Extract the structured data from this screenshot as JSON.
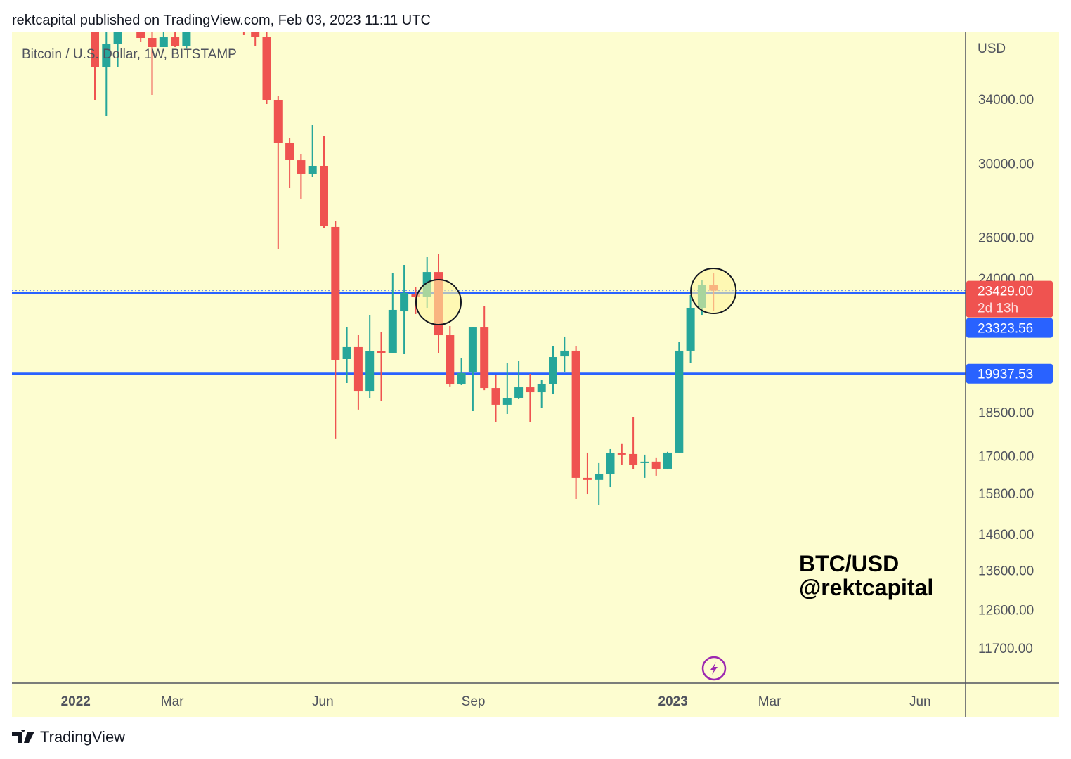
{
  "header": {
    "publish_line": "rektcapital published on TradingView.com, Feb 03, 2023 11:11 UTC"
  },
  "footer": {
    "brand": "TradingView"
  },
  "colors": {
    "background": "#fdfdd0",
    "up": "#26a69a",
    "down": "#ef5350",
    "level": "#2962ff",
    "axis": "#50535e",
    "text": "#50535e",
    "circle": "#131722",
    "flash": "#9c27b0"
  },
  "chart_data": {
    "type": "candlestick",
    "title": "Bitcoin / U.S. Dollar, 1W, BITSTAMP",
    "currency": "USD",
    "scale": "log",
    "start_date": "2022-01-17",
    "interval": "1W",
    "ylim": [
      10500,
      38700
    ],
    "candles_ohlc": [
      [
        41800,
        43000,
        33953,
        36204
      ],
      [
        36155,
        39000,
        32903,
        37873
      ],
      [
        37873,
        44000,
        36204,
        39000
      ],
      null,
      [
        39000,
        39500,
        37978,
        38291
      ],
      [
        38291,
        39000,
        34280,
        37617
      ],
      [
        37617,
        39000,
        37617,
        38342
      ],
      [
        38342,
        39000,
        37617,
        37668
      ],
      [
        37668,
        41000,
        37500,
        40000
      ],
      null,
      null,
      null,
      null,
      [
        40000,
        41000,
        38500,
        39500
      ],
      [
        39500,
        40000,
        37668,
        38395
      ],
      [
        38395,
        39000,
        33676,
        33953
      ],
      [
        33953,
        34186,
        25381,
        31239
      ],
      [
        31239,
        31500,
        28584,
        30230
      ],
      [
        30188,
        30563,
        28006,
        29417
      ],
      [
        29417,
        32323,
        29216,
        29862
      ],
      [
        29862,
        31667,
        26442,
        26551
      ],
      [
        26517,
        26806,
        17578,
        20482
      ],
      [
        20510,
        21840,
        19579,
        20993
      ],
      [
        20993,
        21484,
        18590,
        19259
      ],
      [
        19259,
        22352,
        19026,
        20822
      ],
      [
        20822,
        21631,
        18896,
        20764
      ],
      [
        20764,
        24228,
        20737,
        22569
      ],
      [
        22505,
        24630,
        20707,
        23322
      ],
      [
        23256,
        23578,
        22385,
        23161
      ],
      [
        23161,
        25002,
        22661,
        24293
      ],
      [
        24293,
        25174,
        20737,
        21484
      ],
      [
        21484,
        21870,
        19450,
        19525
      ],
      [
        19525,
        20538,
        19500,
        19957
      ],
      [
        19986,
        21840,
        18538,
        21809
      ],
      [
        21809,
        22754,
        19311,
        19391
      ],
      [
        19391,
        19900,
        18139,
        18769
      ],
      [
        18769,
        20342,
        18438,
        18999
      ],
      [
        19026,
        20454,
        18973,
        19418
      ],
      [
        19418,
        19928,
        18163,
        19233
      ],
      [
        19233,
        19687,
        18640,
        19552
      ],
      [
        19552,
        21020,
        19155,
        20593
      ],
      [
        20620,
        21427,
        20011,
        20850
      ],
      [
        20850,
        21049,
        15628,
        16283
      ],
      [
        16283,
        17103,
        15777,
        16218
      ],
      [
        16218,
        16757,
        15457,
        16394
      ],
      [
        16394,
        17220,
        15994,
        17081
      ],
      [
        17081,
        17390,
        16710,
        17034
      ],
      [
        17057,
        18337,
        16550,
        16710
      ],
      [
        16757,
        17034,
        16283,
        16804
      ],
      [
        16804,
        16942,
        16350,
        16574
      ],
      [
        16574,
        17130,
        16550,
        17103
      ],
      [
        17103,
        21192,
        17080,
        20850
      ],
      [
        20850,
        23226,
        20342,
        22661
      ],
      [
        22661,
        23900,
        22352,
        23680
      ],
      [
        23705,
        24228,
        22505,
        23429
      ]
    ],
    "y_ticks": [
      "34000.00",
      "30000.00",
      "26000.00",
      "24000.00",
      "18500.00",
      "17000.00",
      "15800.00",
      "14600.00",
      "13600.00",
      "12600.00",
      "11700.00"
    ],
    "x_ticks": [
      {
        "label": "2022",
        "date": "2022-01-01",
        "bold": true
      },
      {
        "label": "Mar",
        "date": "2022-03-01",
        "bold": false
      },
      {
        "label": "Jun",
        "date": "2022-06-01",
        "bold": false
      },
      {
        "label": "Sep",
        "date": "2022-09-01",
        "bold": false
      },
      {
        "label": "2023",
        "date": "2023-01-01",
        "bold": true
      },
      {
        "label": "Mar",
        "date": "2023-03-01",
        "bold": false
      },
      {
        "label": "Jun",
        "date": "2023-06-01",
        "bold": false
      }
    ],
    "horizontal_levels": [
      {
        "price": 23323.56,
        "label": "23323.56"
      },
      {
        "price": 19937.53,
        "label": "19937.53"
      }
    ],
    "last_price": {
      "price": 23429.0,
      "label": "23429.00",
      "countdown": "2d 13h"
    },
    "circled_candles": [
      30,
      54
    ],
    "annotation": {
      "line1": "BTC/USD",
      "line2": "@rektcapital"
    }
  }
}
